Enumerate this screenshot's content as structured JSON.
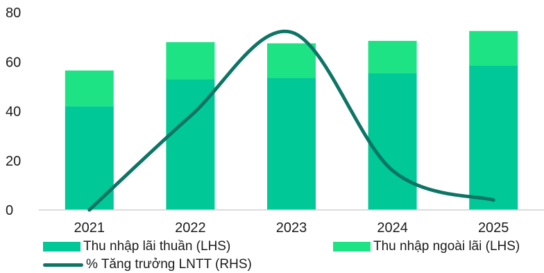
{
  "chart_data": {
    "type": "bar",
    "stacked": true,
    "categories": [
      "2021",
      "2022",
      "2023",
      "2024",
      "2025"
    ],
    "series": [
      {
        "name": "Thu nhập lãi thuần (LHS)",
        "type": "bar",
        "color": "#00c896",
        "values": [
          42,
          53,
          53.5,
          55.5,
          58.5
        ]
      },
      {
        "name": "Thu nhập ngoài lãi (LHS)",
        "type": "bar",
        "color": "#1de384",
        "values": [
          14.5,
          15,
          14,
          13,
          14
        ]
      },
      {
        "name": "% Tăng trưởng LNTT (RHS)",
        "type": "line",
        "color": "#0d7565",
        "values": [
          0,
          38,
          72,
          16,
          4
        ]
      }
    ],
    "y_ticks": [
      "0",
      "20",
      "40",
      "60",
      "80"
    ],
    "ylim": [
      0,
      80
    ],
    "grid": false,
    "legend_position": "bottom"
  }
}
